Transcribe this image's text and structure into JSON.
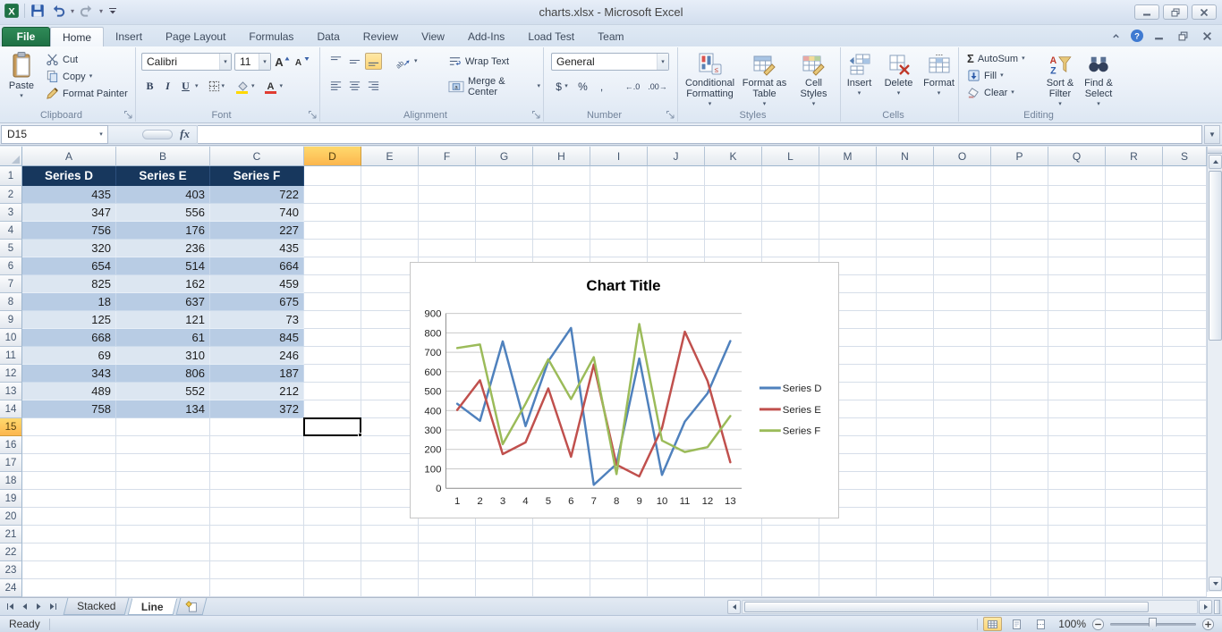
{
  "window": {
    "title": "charts.xlsx  -  Microsoft Excel"
  },
  "tabs": {
    "file": "File",
    "items": [
      "Home",
      "Insert",
      "Page Layout",
      "Formulas",
      "Data",
      "Review",
      "View",
      "Add-Ins",
      "Load Test",
      "Team"
    ],
    "active": "Home"
  },
  "ribbon": {
    "clipboard": {
      "label": "Clipboard",
      "paste": "Paste",
      "cut": "Cut",
      "copy": "Copy",
      "format_painter": "Format Painter"
    },
    "font": {
      "label": "Font",
      "name": "Calibri",
      "size": "11",
      "bold": "B",
      "italic": "I",
      "underline": "U"
    },
    "alignment": {
      "label": "Alignment",
      "wrap_text": "Wrap Text",
      "merge_center": "Merge & Center"
    },
    "number": {
      "label": "Number",
      "format": "General",
      "currency": "$",
      "percent": "%",
      "comma": ",",
      "increase_decimal": "←.0",
      "decrease_decimal": ".00→"
    },
    "styles": {
      "label": "Styles",
      "buttons": [
        "Conditional Formatting",
        "Format as Table",
        "Cell Styles"
      ]
    },
    "cells": {
      "label": "Cells",
      "buttons": [
        "Insert",
        "Delete",
        "Format"
      ]
    },
    "editing": {
      "label": "Editing",
      "autosum": "AutoSum",
      "fill": "Fill",
      "clear": "Clear",
      "sort_filter": "Sort & Filter",
      "find_select": "Find & Select"
    }
  },
  "formula_bar": {
    "name_box": "D15",
    "fx": "fx",
    "formula": ""
  },
  "grid": {
    "columns": [
      "A",
      "B",
      "C",
      "D",
      "E",
      "F",
      "G",
      "H",
      "I",
      "J",
      "K",
      "L",
      "M",
      "N",
      "O",
      "P",
      "Q",
      "R",
      "S"
    ],
    "wide_cols": [
      "A",
      "B",
      "C"
    ],
    "wide_width": 105,
    "default_width": 64,
    "row_count": 24,
    "selected_cell": "D15",
    "selected_column": "D",
    "selected_row": 15,
    "table": {
      "headers": [
        "Series D",
        "Series E",
        "Series F"
      ],
      "header_bg": "#17375D",
      "band_dark": "#B8CCE4",
      "band_light": "#DCE6F1",
      "data": [
        [
          435,
          403,
          722
        ],
        [
          347,
          556,
          740
        ],
        [
          756,
          176,
          227
        ],
        [
          320,
          236,
          435
        ],
        [
          654,
          514,
          664
        ],
        [
          825,
          162,
          459
        ],
        [
          18,
          637,
          675
        ],
        [
          125,
          121,
          73
        ],
        [
          668,
          61,
          845
        ],
        [
          69,
          310,
          246
        ],
        [
          343,
          806,
          187
        ],
        [
          489,
          552,
          212
        ],
        [
          758,
          134,
          372
        ]
      ]
    }
  },
  "chart_data": {
    "type": "line",
    "title": "Chart Title",
    "categories": [
      1,
      2,
      3,
      4,
      5,
      6,
      7,
      8,
      9,
      10,
      11,
      12,
      13
    ],
    "series": [
      {
        "name": "Series D",
        "color": "#4F81BD",
        "values": [
          435,
          347,
          756,
          320,
          654,
          825,
          18,
          125,
          668,
          69,
          343,
          489,
          758
        ]
      },
      {
        "name": "Series E",
        "color": "#C0504D",
        "values": [
          403,
          556,
          176,
          236,
          514,
          162,
          637,
          121,
          61,
          310,
          806,
          552,
          134
        ]
      },
      {
        "name": "Series F",
        "color": "#9BBB59",
        "values": [
          722,
          740,
          227,
          435,
          664,
          459,
          675,
          73,
          845,
          246,
          187,
          212,
          372
        ]
      }
    ],
    "ylim": [
      0,
      900
    ],
    "ytick": 100,
    "xlabel": "",
    "ylabel": "",
    "grid": true,
    "legend_position": "right"
  },
  "sheet_tabs": {
    "items": [
      {
        "label": "Stacked",
        "active": false
      },
      {
        "label": "Line",
        "active": true
      }
    ]
  },
  "status_bar": {
    "ready": "Ready",
    "zoom": "100%"
  }
}
